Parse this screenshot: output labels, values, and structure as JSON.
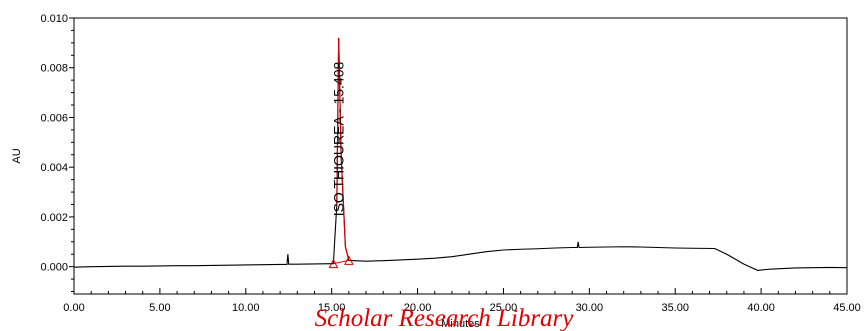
{
  "chart_data": {
    "type": "line",
    "xlabel": "Minutes",
    "ylabel": "AU",
    "xlim": [
      0,
      45
    ],
    "ylim": [
      -0.0011,
      0.01
    ],
    "x_ticks": [
      "0.00",
      "5.00",
      "10.00",
      "15.00",
      "20.00",
      "25.00",
      "30.00",
      "35.00",
      "40.00",
      "45.00"
    ],
    "y_ticks": [
      "0.000",
      "0.002",
      "0.004",
      "0.006",
      "0.008",
      "0.010"
    ],
    "grid": false,
    "series": [
      {
        "color": "#000000",
        "points": [
          [
            0,
            -2e-05
          ],
          [
            1,
            0.0
          ],
          [
            2,
            1e-05
          ],
          [
            3,
            2e-05
          ],
          [
            4,
            2e-05
          ],
          [
            5,
            3e-05
          ],
          [
            6,
            4e-05
          ],
          [
            7,
            4e-05
          ],
          [
            8,
            5e-05
          ],
          [
            9,
            6e-05
          ],
          [
            10,
            7e-05
          ],
          [
            11,
            8e-05
          ],
          [
            12,
            9e-05
          ],
          [
            12.4,
            9e-05
          ],
          [
            12.45,
            0.0005
          ],
          [
            12.5,
            0.0001
          ],
          [
            13,
            0.0001
          ],
          [
            14,
            0.00011
          ],
          [
            15,
            0.00012
          ],
          [
            15.1,
            0.00012
          ],
          [
            15.3,
            0.0025
          ],
          [
            15.408,
            0.0092
          ],
          [
            15.55,
            0.0045
          ],
          [
            15.8,
            0.0008
          ],
          [
            16.0,
            0.00025
          ],
          [
            17,
            0.00022
          ],
          [
            18,
            0.00024
          ],
          [
            19,
            0.00027
          ],
          [
            20,
            0.0003
          ],
          [
            21,
            0.00034
          ],
          [
            22,
            0.0004
          ],
          [
            23,
            0.0005
          ],
          [
            24,
            0.0006
          ],
          [
            25,
            0.00067
          ],
          [
            26,
            0.0007
          ],
          [
            27,
            0.00072
          ],
          [
            28,
            0.00075
          ],
          [
            29,
            0.00077
          ],
          [
            29.3,
            0.00077
          ],
          [
            29.35,
            0.001
          ],
          [
            29.4,
            0.00077
          ],
          [
            30,
            0.00078
          ],
          [
            31,
            0.00079
          ],
          [
            32,
            0.0008
          ],
          [
            33,
            0.00079
          ],
          [
            34,
            0.00077
          ],
          [
            35,
            0.00075
          ],
          [
            36,
            0.00074
          ],
          [
            37.3,
            0.00073
          ],
          [
            38,
            0.0005
          ],
          [
            39,
            0.0001
          ],
          [
            39.8,
            -0.00015
          ],
          [
            40.5,
            -0.0001
          ],
          [
            42,
            -5e-05
          ],
          [
            43,
            -4e-05
          ],
          [
            44,
            -3e-05
          ],
          [
            45,
            -4e-05
          ]
        ]
      }
    ],
    "peak": {
      "label": "ISO THIOUREA - 15.408",
      "color": "#d10000",
      "points": [
        [
          15.3,
          0.0025
        ],
        [
          15.408,
          0.0092
        ],
        [
          15.55,
          0.0045
        ],
        [
          15.8,
          0.0008
        ],
        [
          16.0,
          0.00025
        ]
      ],
      "start_marker": [
        15.1,
        0.00012
      ],
      "end_marker": [
        16.0,
        0.00025
      ]
    }
  },
  "watermark": "Scholar Research Library"
}
